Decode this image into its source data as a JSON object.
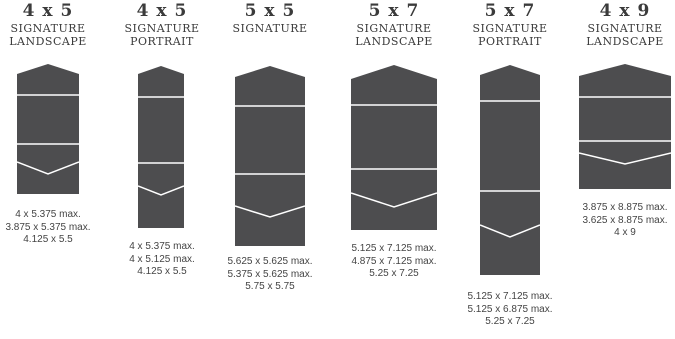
{
  "colors": {
    "pocket": "#4d4d4f",
    "line": "#ffffff",
    "text": "#3b3b3b"
  },
  "items": [
    {
      "size": "4 x 5",
      "line1": "SIGNATURE",
      "line2": "LANDSCAPE",
      "dims": [
        "4 x 5.375 max.",
        "3.875 x 5.375 max.",
        "4.125 x 5.5"
      ]
    },
    {
      "size": "4 x 5",
      "line1": "SIGNATURE",
      "line2": "PORTRAIT",
      "dims": [
        "4 x 5.375 max.",
        "4 x 5.125 max.",
        "4.125 x 5.5"
      ]
    },
    {
      "size": "5 x 5",
      "line1": "SIGNATURE",
      "line2": "",
      "dims": [
        "5.625 x 5.625 max.",
        "5.375 x 5.625 max.",
        "5.75 x 5.75"
      ]
    },
    {
      "size": "5 x 7",
      "line1": "SIGNATURE",
      "line2": "LANDSCAPE",
      "dims": [
        "5.125 x 7.125 max.",
        "4.875 x 7.125 max.",
        "5.25 x 7.25"
      ]
    },
    {
      "size": "5 x 7",
      "line1": "SIGNATURE",
      "line2": "PORTRAIT",
      "dims": [
        "5.125 x 7.125 max.",
        "5.125 x 6.875 max.",
        "5.25 x 7.25"
      ]
    },
    {
      "size": "4 x 9",
      "line1": "SIGNATURE",
      "line2": "LANDSCAPE",
      "dims": [
        "3.875 x 8.875 max.",
        "3.625 x 8.875 max.",
        "4 x 9"
      ]
    }
  ]
}
